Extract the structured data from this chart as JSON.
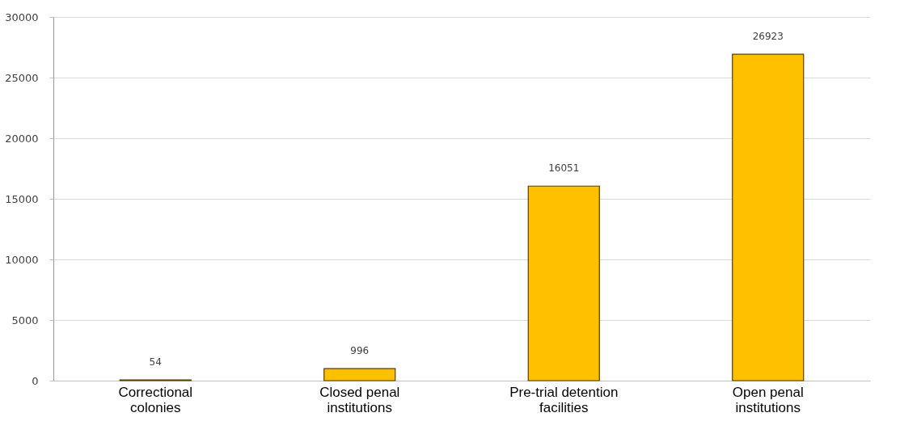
{
  "chart_data": {
    "type": "bar",
    "categories": [
      "Correctional colonies",
      "Closed penal institutions",
      "Pre-trial detention facilities",
      "Open penal institutions"
    ],
    "values": [
      54,
      996,
      16051,
      26923
    ],
    "color": "#ffc000",
    "ylim": [
      0,
      30000
    ],
    "yticks": [
      0,
      5000,
      10000,
      15000,
      20000,
      25000,
      30000
    ],
    "grid": "y",
    "data_labels": true
  }
}
